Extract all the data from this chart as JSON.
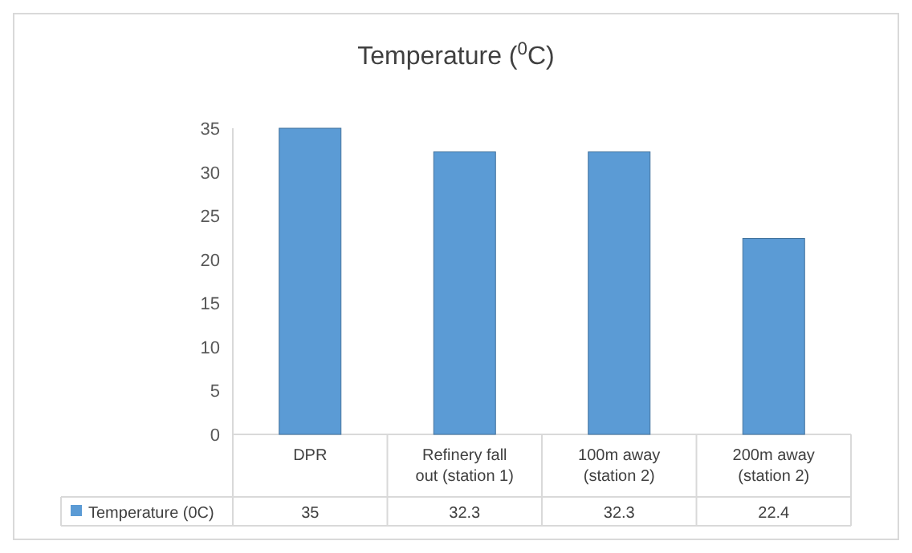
{
  "chart_data": {
    "type": "bar",
    "title": "Temperature ($^{0}$C)",
    "categories": [
      "DPR",
      "Refinery fall out (station 1)",
      "100m away (station 2)",
      "200m away (station 2)"
    ],
    "series": [
      {
        "name": "Temperature (0C)",
        "color": "#5b9bd5",
        "values": [
          35,
          32.3,
          32.3,
          22.4
        ]
      }
    ],
    "ylim": [
      0,
      35
    ],
    "yticks": [
      0,
      5,
      10,
      15,
      20,
      25,
      30,
      35
    ],
    "data_labels": true,
    "legend": "bottom",
    "grid": false
  }
}
